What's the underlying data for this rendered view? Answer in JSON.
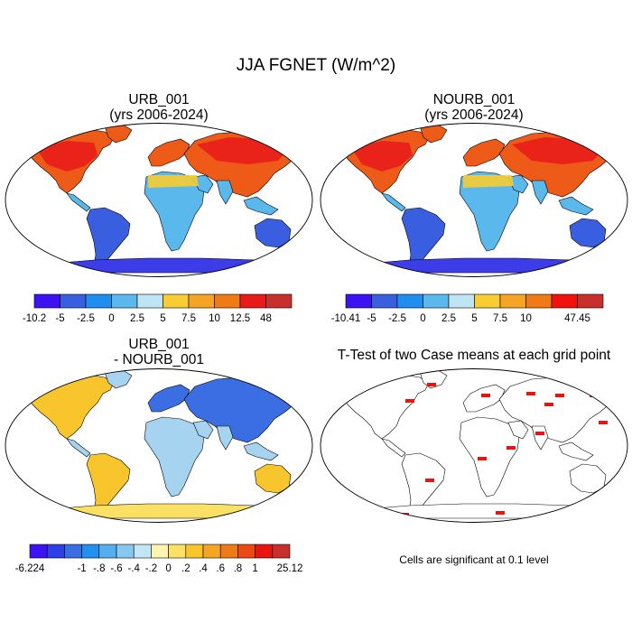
{
  "title": "JJA FGNET (W/m^2)",
  "panels": [
    {
      "id": "urb",
      "title_line1": "URB_001",
      "title_line2": "(yrs 2006-2024)"
    },
    {
      "id": "nourb",
      "title_line1": "NOURB_001",
      "title_line2": "(yrs 2006-2024)"
    },
    {
      "id": "diff",
      "title_line1": "URB_001",
      "title_line2": "- NOURB_001"
    },
    {
      "id": "ttest",
      "title_line1": "T-Test of two Case means at each grid point",
      "title_line2": ""
    }
  ],
  "note": "Cells are significant at 0.1 level",
  "colorbars": [
    {
      "id": "cbar-urb",
      "colors": [
        "#3c12f2",
        "#3a5ee0",
        "#1f8ef0",
        "#5ab8ec",
        "#bfe4f4",
        "#f7cd33",
        "#f5a424",
        "#f07a15",
        "#e81a1a",
        "#c8302e"
      ],
      "labels": [
        "-10.2",
        "-5",
        "-2.5",
        "0",
        "2.5",
        "5",
        "7.5",
        "10",
        "12.5",
        "48"
      ]
    },
    {
      "id": "cbar-nourb",
      "colors": [
        "#3c12f2",
        "#3a5ee0",
        "#1f8ef0",
        "#5ab8ec",
        "#bfe4f4",
        "#f7cd33",
        "#f5a424",
        "#f07a15",
        "#f2120c",
        "#c8302e"
      ],
      "labels": [
        "-10.41",
        "-5",
        "-2.5",
        "0",
        "2.5",
        "5",
        "7.5",
        "10",
        "",
        "47.45"
      ]
    },
    {
      "id": "cbar-diff",
      "colors": [
        "#3c12f2",
        "#2d3fe6",
        "#3a6ee2",
        "#2190ee",
        "#55aef0",
        "#86c8f2",
        "#c3e6f6",
        "#fbf5b0",
        "#fbe066",
        "#f9c52c",
        "#f5a424",
        "#f07a15",
        "#ec4a12",
        "#e81410",
        "#c8302e"
      ],
      "labels": [
        "-6.224",
        "",
        "",
        "-1",
        "-.8",
        "-.6",
        "-.4",
        "-.2",
        "0",
        ".2",
        ".4",
        ".6",
        ".8",
        "1",
        "",
        "25.12"
      ]
    }
  ],
  "map_fill": {
    "urb": {
      "north": "#ee5a18",
      "tropics": "#5ab8ec",
      "south": "#3a5ee0",
      "antarctica": "#3c3ce8",
      "ocean": "#ffffff"
    },
    "nourb": {
      "north": "#ee5a18",
      "tropics": "#5ab8ec",
      "south": "#3a5ee0",
      "antarctica": "#3c3ce8",
      "ocean": "#ffffff"
    },
    "diff": {
      "land": "#a6d4f0",
      "warm": "#f9c52c",
      "cool": "#3a6ee2",
      "antarctica": "#fbe066",
      "ocean": "#ffffff"
    },
    "ttest": {
      "land": "#ffffff",
      "significant": "#e81410",
      "ocean": "#ffffff"
    }
  }
}
